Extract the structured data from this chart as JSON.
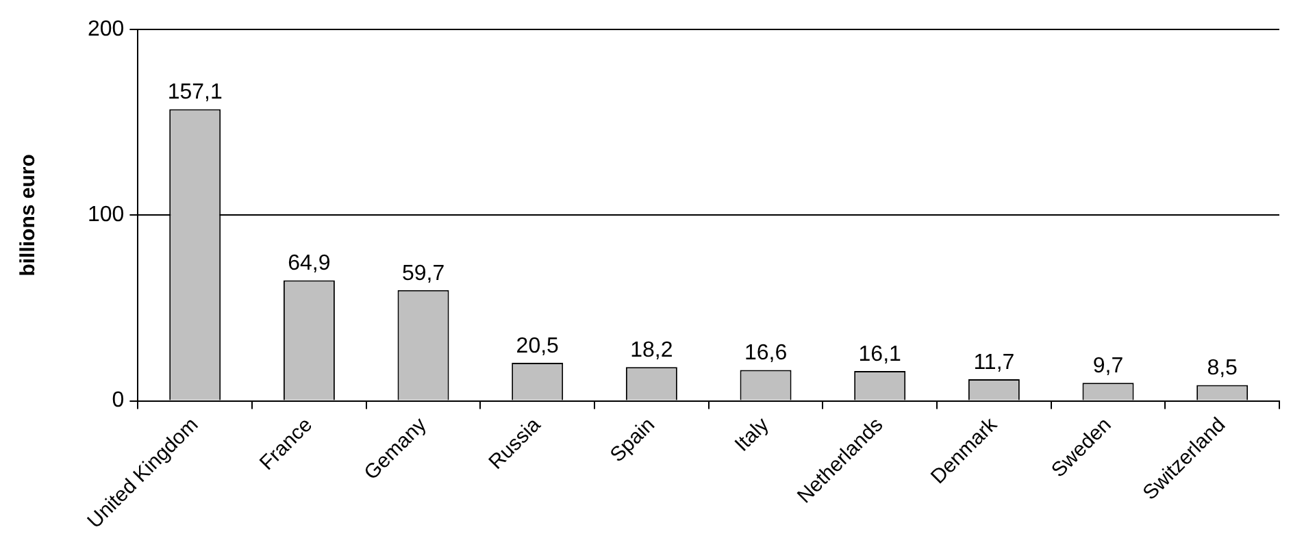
{
  "chart_data": {
    "type": "bar",
    "ylabel": "billions euro",
    "categories": [
      "United Kingdom",
      "France",
      "Gemany",
      "Russia",
      "Spain",
      "Italy",
      "Netherlands",
      "Denmark",
      "Sweden",
      "Switzerland"
    ],
    "values": [
      157.1,
      64.9,
      59.7,
      20.5,
      18.2,
      16.6,
      16.1,
      11.7,
      9.7,
      8.5
    ],
    "value_labels": [
      "157,1",
      "64,9",
      "59,7",
      "20,5",
      "18,2",
      "16,6",
      "16,1",
      "11,7",
      "9,7",
      "8,5"
    ],
    "color": "#c0c0c0",
    "ylim": [
      0,
      200
    ],
    "yticks": [
      0,
      100,
      200
    ],
    "grid": "y",
    "legend": false
  }
}
